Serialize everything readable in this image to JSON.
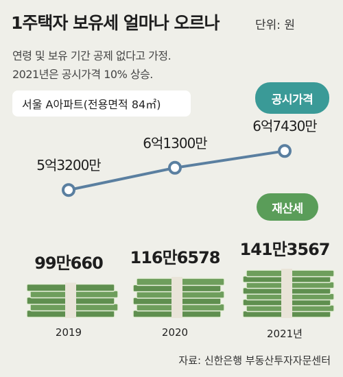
{
  "header": {
    "title": "1주택자 보유세 얼마나 오르나",
    "unit": "단위: 원",
    "note1": "연령 및 보유 기간 공제 없다고 가정.",
    "note2": "2021년은 공시가격 10% 상승.",
    "apartment": "서울 A아파트(전용면적 84㎡)"
  },
  "legend": {
    "price_series": "공시가격",
    "tax_series": "재산세"
  },
  "colors": {
    "line": "#5a7fa0",
    "price_bubble": "#3a9a97",
    "tax_bubble": "#5a9d59",
    "money_green": "#5f8f4f"
  },
  "chart_data": {
    "type": "line",
    "categories": [
      "2019",
      "2020",
      "2021년"
    ],
    "series": [
      {
        "name": "공시가격",
        "values": [
          532000000,
          613000000,
          674300000
        ],
        "labels": [
          "5억3200만",
          "6억1300만",
          "6억7430만"
        ]
      },
      {
        "name": "재산세",
        "values": [
          990660,
          1166578,
          1413567
        ],
        "labels": [
          "99만660",
          "116만6578",
          "141만3567"
        ]
      }
    ]
  },
  "source": "자료: 신한은행 부동산투자자문센터"
}
